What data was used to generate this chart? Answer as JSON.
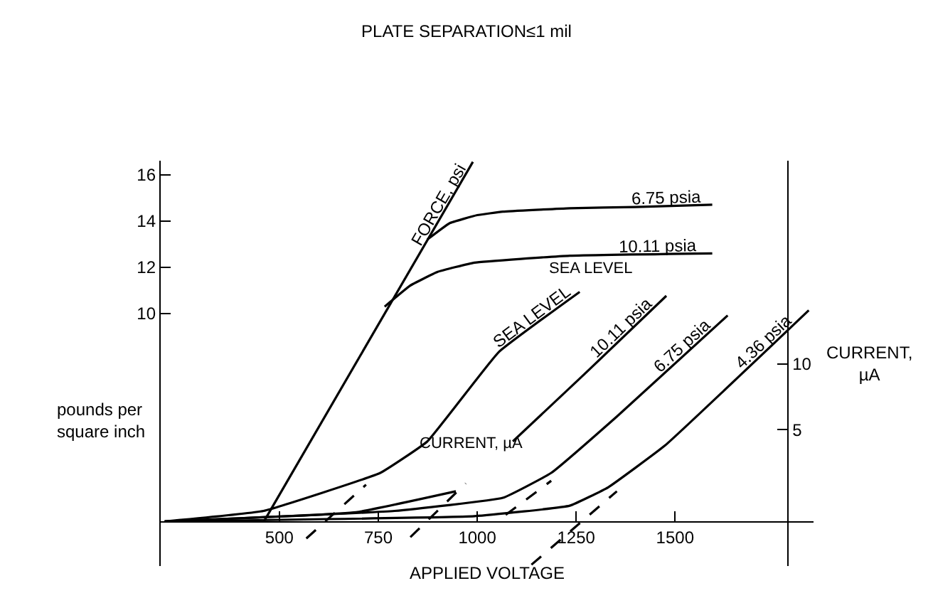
{
  "chart_data": {
    "type": "line",
    "title": "PLATE SEPARATION≤1 mil",
    "xlabel": "APPLIED VOLTAGE",
    "ylabel": "pounds per\nsquare inch",
    "y2label": "CURRENT,\nµA",
    "xlim": [
      200,
      1850
    ],
    "ylim": [
      -0.9,
      16.6
    ],
    "y2lim": [
      -5.4,
      25.5
    ],
    "xticks": [
      500,
      750,
      1000,
      1250,
      1500
    ],
    "yticks": [
      10,
      12,
      14,
      16
    ],
    "y2ticks": [
      5,
      10
    ],
    "legend": false,
    "marker": "none",
    "line_style": "solid",
    "annotations": [
      "SEA LEVEL",
      "CURRENT, µA"
    ],
    "series": [
      {
        "name": "FORCE, psi",
        "color": "#000000",
        "x": [
          460,
          989
        ],
        "values": [
          1.0,
          16.55
        ]
      },
      {
        "name": "6.75 psia",
        "color": "#000000",
        "x": [
          874,
          930,
          1000,
          1065,
          1234,
          1400,
          1594
        ],
        "values": [
          13.2,
          13.9,
          14.25,
          14.4,
          14.55,
          14.6,
          14.7
        ]
      },
      {
        "name": "10.11 psia",
        "color": "#000000",
        "x": [
          766,
          830,
          900,
          993,
          1234,
          1594
        ],
        "values": [
          10.3,
          11.2,
          11.8,
          12.2,
          12.5,
          12.6
        ]
      },
      {
        "name": "SEA LEVEL",
        "color": "#000000",
        "axis": "y2",
        "x": [
          210,
          460,
          755,
          874,
          1054,
          1259
        ],
        "values": [
          -2.0,
          -1.2,
          1.7,
          4.1,
          10.9,
          15.5
        ]
      },
      {
        "name": "10.11 psia",
        "color": "#000000",
        "axis": "y2",
        "x": [
          210,
          694,
          946,
          1020,
          1090,
          1270,
          1478
        ],
        "values": [
          -2.0,
          -1.3,
          0.3,
          null,
          4.1,
          9.2,
          15.2
        ]
      },
      {
        "name": "6.75 psia",
        "color": "#000000",
        "axis": "y2",
        "x": [
          210,
          791,
          1065,
          1187,
          1353,
          1633
        ],
        "values": [
          -2.0,
          -1.2,
          -0.2,
          1.7,
          6.0,
          13.7
        ]
      },
      {
        "name": "4.36 psia",
        "color": "#000000",
        "axis": "y2",
        "x": [
          210,
          993,
          1234,
          1331,
          1475,
          1838
        ],
        "values": [
          -2.0,
          -1.6,
          -0.8,
          0.6,
          3.8,
          14.1
        ]
      },
      {
        "color": "#000000",
        "axis": "y2",
        "line_style": "dashed",
        "x": [
          568,
          719
        ],
        "values": [
          -3.3,
          0.8
        ]
      },
      {
        "color": "#000000",
        "axis": "y2",
        "line_style": "dashed",
        "x": [
          831,
          971
        ],
        "values": [
          -3.2,
          0.9
        ]
      },
      {
        "color": "#000000",
        "axis": "y2",
        "line_style": "dashed",
        "x": [
          1072,
          1187
        ],
        "values": [
          -1.5,
          1.1
        ]
      },
      {
        "color": "#000000",
        "axis": "y2",
        "line_style": "dashed",
        "x": [
          1137,
          1353
        ],
        "values": [
          -5.3,
          0.3
        ]
      }
    ]
  }
}
